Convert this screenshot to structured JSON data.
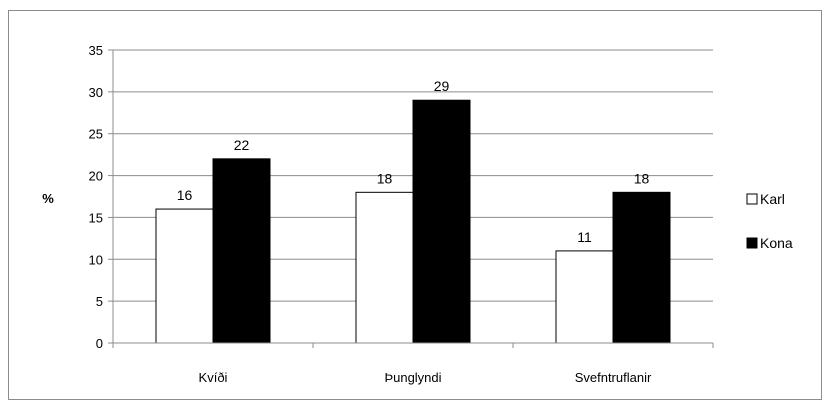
{
  "chart_data": {
    "type": "bar",
    "title": "",
    "xlabel": "",
    "ylabel": "%",
    "ylim": [
      0,
      35
    ],
    "yticks": [
      0,
      5,
      10,
      15,
      20,
      25,
      30,
      35
    ],
    "grid": true,
    "legend_position": "right",
    "categories": [
      "Kvíði",
      "Þunglyndi",
      "Svefntruflanir"
    ],
    "series": [
      {
        "name": "Karl",
        "values": [
          16,
          18,
          11
        ],
        "color": "#ffffff"
      },
      {
        "name": "Kona",
        "values": [
          22,
          29,
          18
        ],
        "color": "#000000"
      }
    ]
  }
}
